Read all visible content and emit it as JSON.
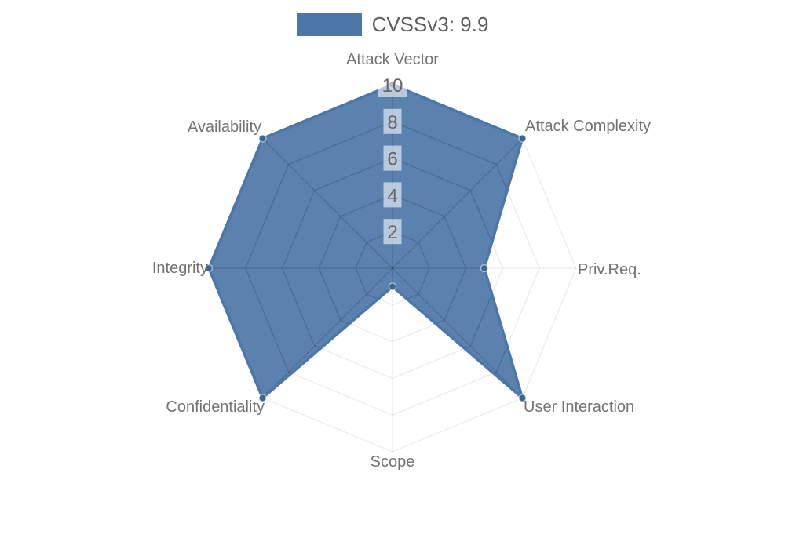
{
  "legend": {
    "label": "CVSSv3: 9.9",
    "color": "#4d77a8"
  },
  "chart_data": {
    "type": "radar",
    "categories": [
      "Attack Vector",
      "Attack Complexity",
      "Priv.Req.",
      "User Interaction",
      "Scope",
      "Confidentiality",
      "Integrity",
      "Availability"
    ],
    "series": [
      {
        "name": "CVSSv3: 9.9",
        "values": [
          10,
          10,
          5,
          10,
          1,
          10,
          10,
          10
        ]
      }
    ],
    "rlim": [
      0,
      10
    ],
    "ticks": [
      2,
      4,
      6,
      8,
      10
    ],
    "grid": true,
    "legend_position": "top",
    "colors": {
      "series_fill": "rgba(77,119,168,0.92)",
      "series_stroke": "#4d77a8",
      "marker": "#3d6590",
      "marker_edge": "rgba(255,255,255,0.5)",
      "grid_outer": "rgba(0,0,0,0.08)",
      "grid_inner": "rgba(0,0,0,0.16)",
      "tick_backdrop": "rgba(255,255,255,0.58)",
      "tick_text": "#666666",
      "axis_label": "#737373",
      "background": "#ffffff"
    }
  }
}
